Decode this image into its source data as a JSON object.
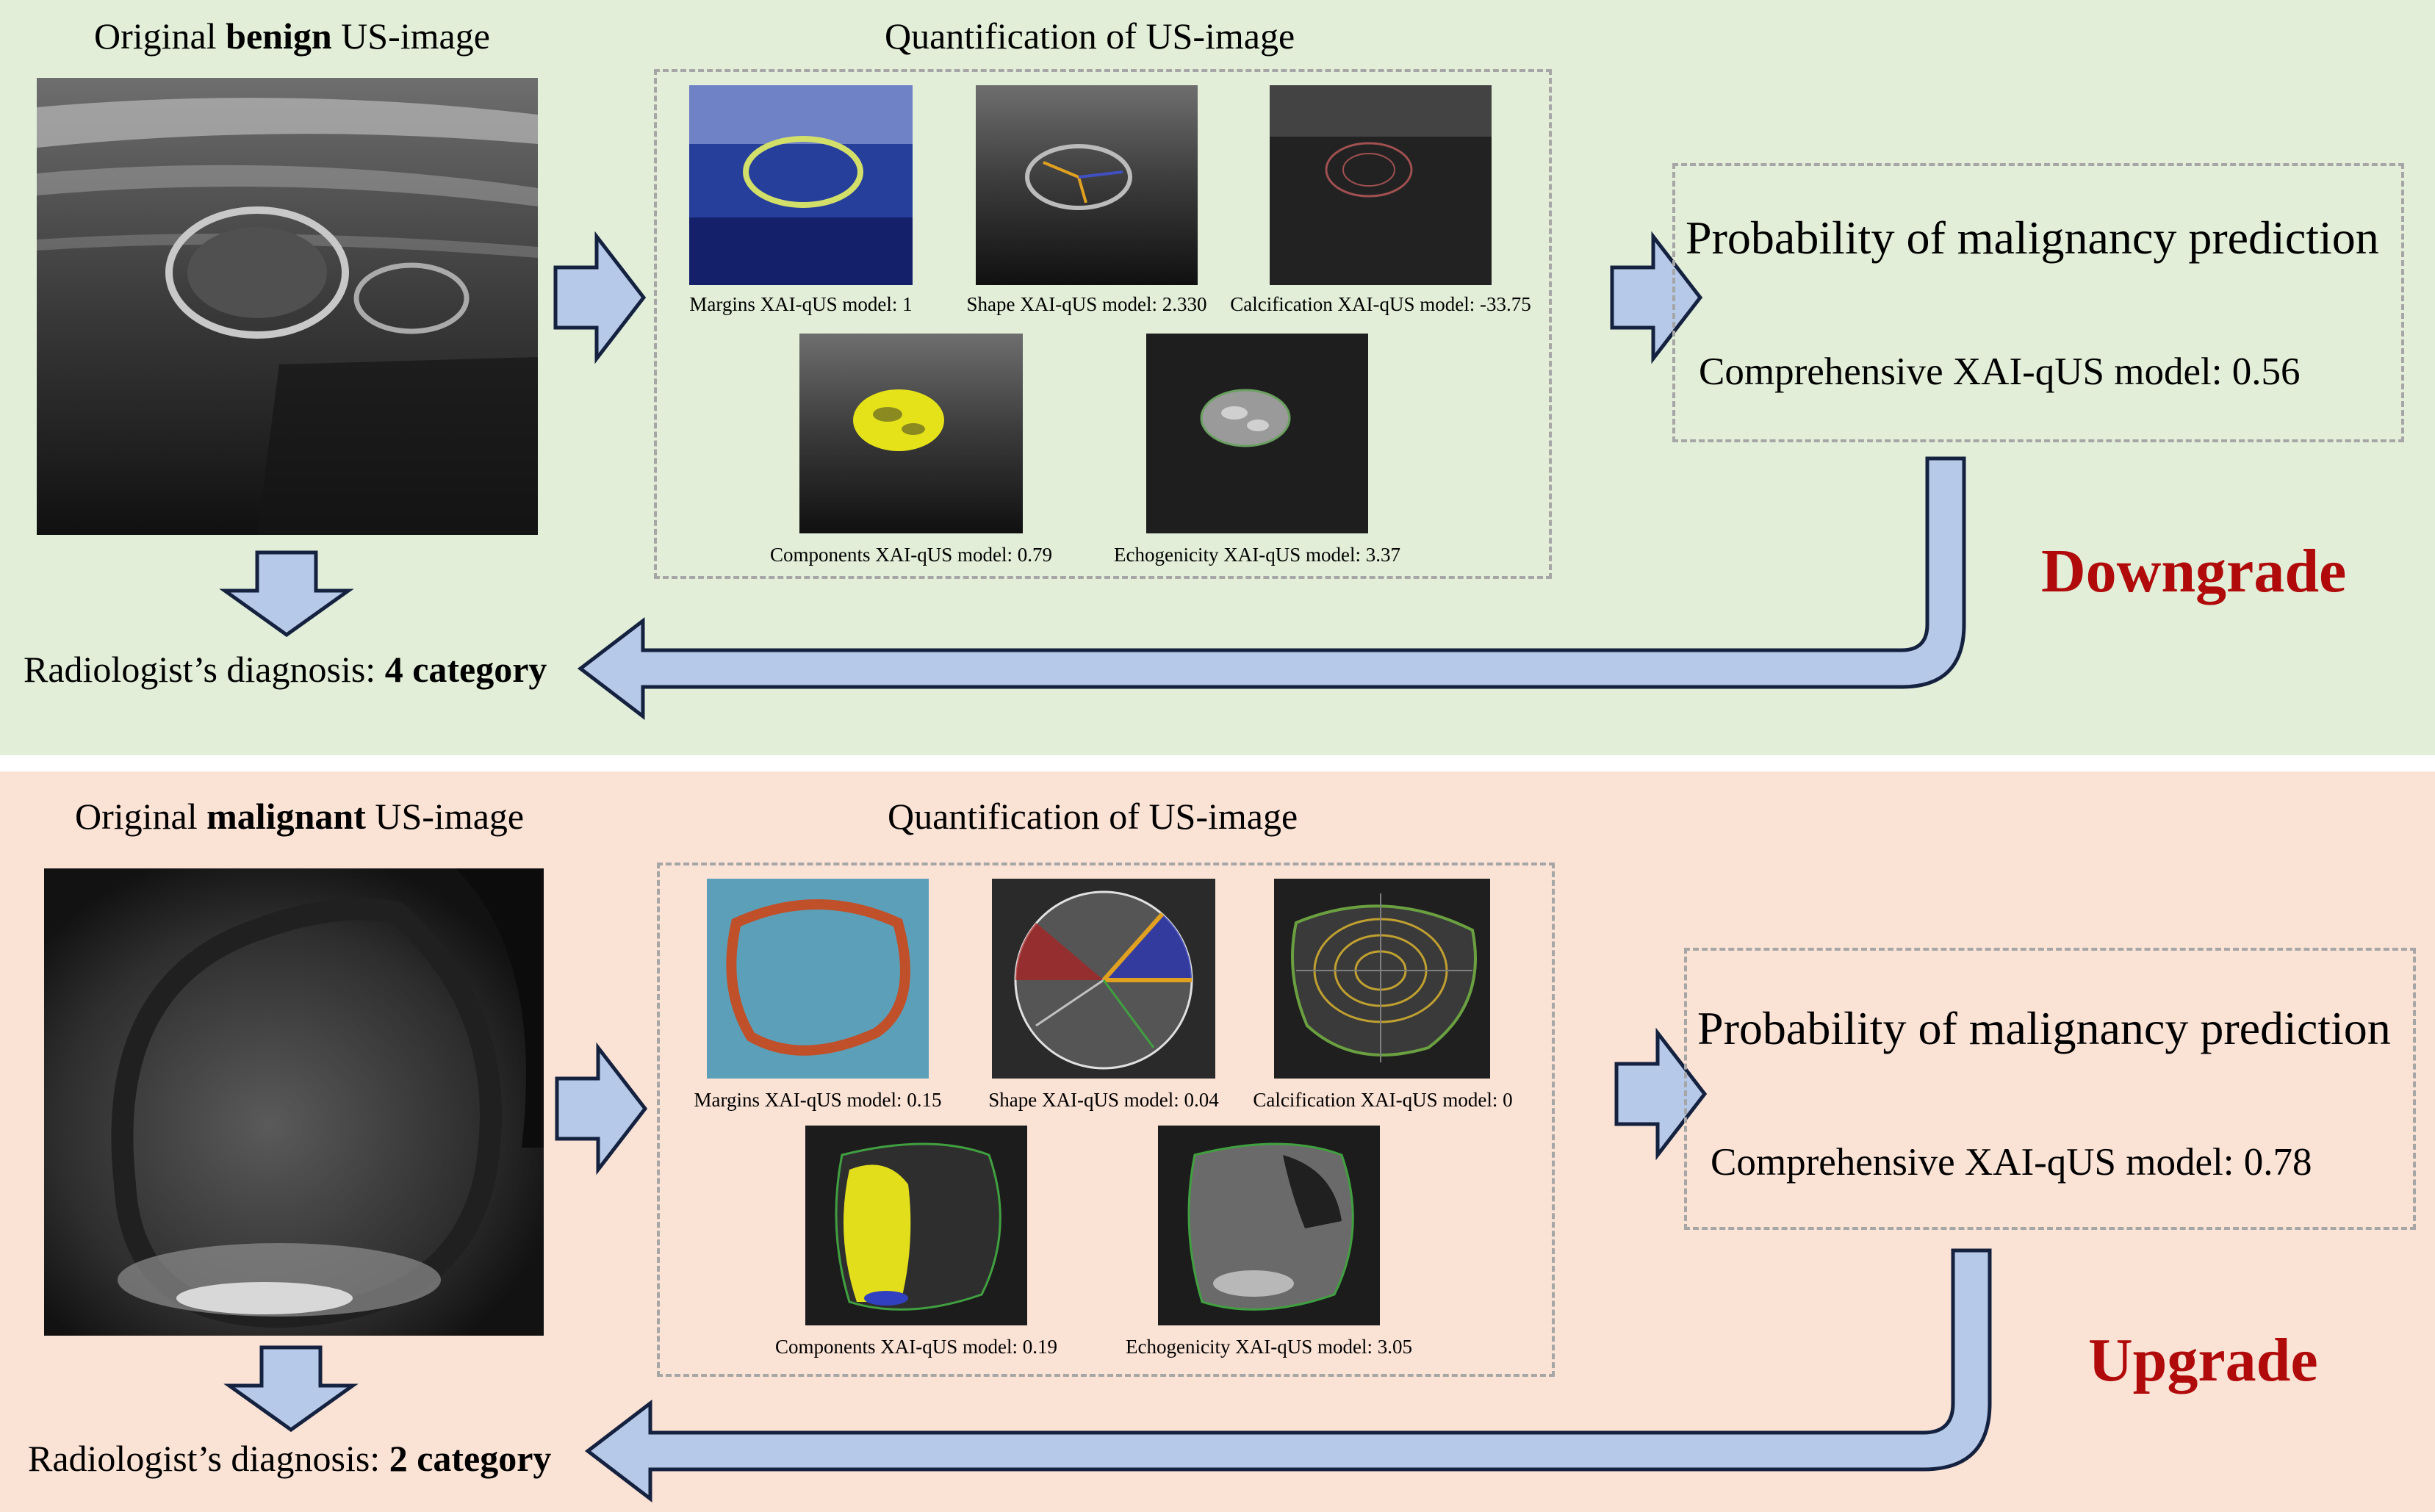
{
  "colors": {
    "benign_bg": "#e2eed8",
    "malignant_bg": "#fae2d5",
    "arrow_fill": "#b6c9e8",
    "arrow_stroke": "#14213f",
    "verdict_red": "#b00a0a",
    "dash_border": "#a6a6a6"
  },
  "icons": [
    "block-arrow-right",
    "block-arrow-down",
    "elbow-return-arrow",
    "ultrasound-image"
  ],
  "benign": {
    "original_prefix": "Original ",
    "original_emph": "benign",
    "original_suffix": " US-image",
    "quant_title": "Quantification of US-image",
    "captions": {
      "margins": "Margins  XAI-qUS model: 1",
      "shape": "Shape XAI-qUS model: 2.330",
      "calcification": "Calcification XAI-qUS model: -33.75",
      "components": "Components XAI-qUS model: 0.79",
      "echogenicity": "Echogenicity XAI-qUS model: 3.37"
    },
    "probability_title": "Probability of malignancy prediction",
    "comprehensive": "Comprehensive XAI-qUS model: 0.56",
    "diagnosis_prefix": "Radiologist’s diagnosis: ",
    "diagnosis_emph": "4 category",
    "verdict": "Downgrade"
  },
  "malignant": {
    "original_prefix": "Original ",
    "original_emph": "malignant",
    "original_suffix": " US-image",
    "quant_title": "Quantification of US-image",
    "captions": {
      "margins": "Margins  XAI-qUS model: 0.15",
      "shape": "Shape XAI-qUS model: 0.04",
      "calcification": "Calcification XAI-qUS model: 0",
      "components": "Components XAI-qUS model: 0.19",
      "echogenicity": "Echogenicity XAI-qUS model: 3.05"
    },
    "probability_title": "Probability of malignancy prediction",
    "comprehensive": "Comprehensive XAI-qUS model: 0.78",
    "diagnosis_prefix": "Radiologist’s diagnosis: ",
    "diagnosis_emph": "2 category",
    "verdict": "Upgrade"
  }
}
